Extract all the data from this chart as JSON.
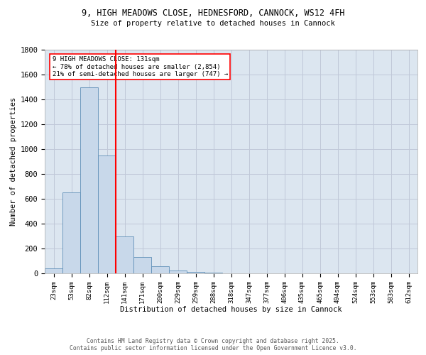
{
  "title_line1": "9, HIGH MEADOWS CLOSE, HEDNESFORD, CANNOCK, WS12 4FH",
  "title_line2": "Size of property relative to detached houses in Cannock",
  "xlabel": "Distribution of detached houses by size in Cannock",
  "ylabel": "Number of detached properties",
  "bar_labels": [
    "23sqm",
    "53sqm",
    "82sqm",
    "112sqm",
    "141sqm",
    "171sqm",
    "200sqm",
    "229sqm",
    "259sqm",
    "288sqm",
    "318sqm",
    "347sqm",
    "377sqm",
    "406sqm",
    "435sqm",
    "465sqm",
    "494sqm",
    "524sqm",
    "553sqm",
    "583sqm",
    "612sqm"
  ],
  "bar_values": [
    40,
    650,
    1500,
    950,
    295,
    130,
    60,
    25,
    10,
    5,
    0,
    0,
    0,
    0,
    0,
    0,
    0,
    0,
    0,
    0,
    0
  ],
  "bar_color": "#c8d8ea",
  "bar_edge_color": "#6090b8",
  "grid_color": "#c0c8d8",
  "background_color": "#dce6f0",
  "vline_color": "red",
  "annotation_text": "9 HIGH MEADOWS CLOSE: 131sqm\n← 78% of detached houses are smaller (2,854)\n21% of semi-detached houses are larger (747) →",
  "annotation_box_color": "white",
  "annotation_box_edge": "red",
  "ylim": [
    0,
    1800
  ],
  "yticks": [
    0,
    200,
    400,
    600,
    800,
    1000,
    1200,
    1400,
    1600,
    1800
  ],
  "footer_line1": "Contains HM Land Registry data © Crown copyright and database right 2025.",
  "footer_line2": "Contains public sector information licensed under the Open Government Licence v3.0."
}
